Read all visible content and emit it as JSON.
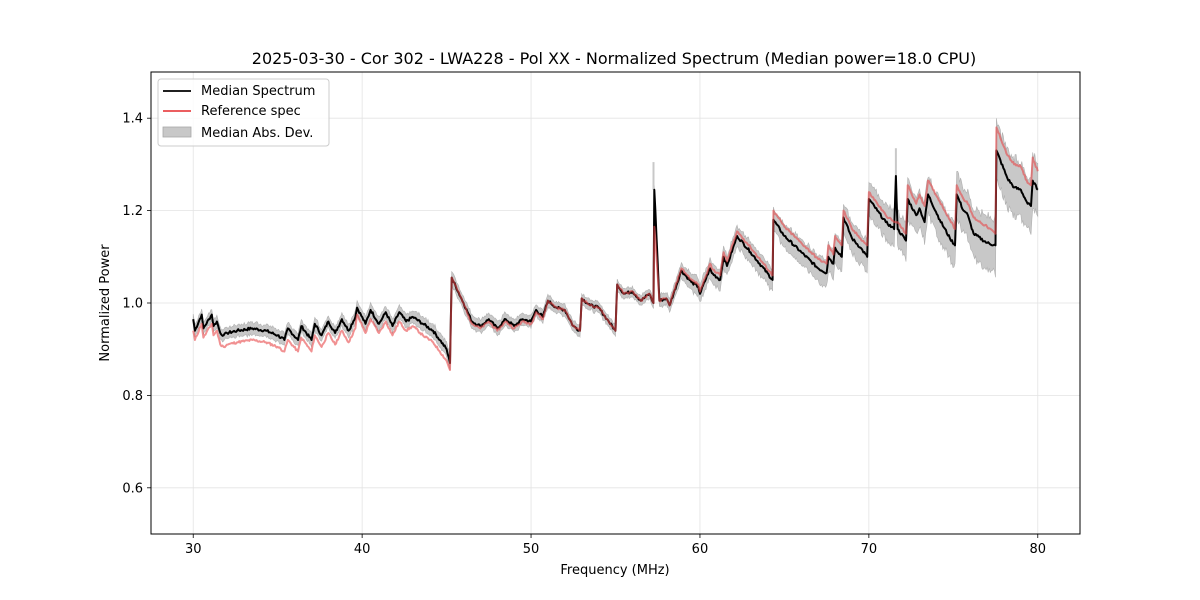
{
  "chart_data": {
    "type": "line",
    "title": "2025-03-30 - Cor 302 - LWA228 - Pol XX - Normalized Spectrum (Median power=18.0 CPU)",
    "xlabel": "Frequency (MHz)",
    "ylabel": "Normalized Power",
    "xlim": [
      27.5,
      82.5
    ],
    "ylim": [
      0.5,
      1.5
    ],
    "xticks": [
      30,
      40,
      50,
      60,
      70,
      80
    ],
    "xtick_labels": [
      "30",
      "40",
      "50",
      "60",
      "70",
      "80"
    ],
    "yticks": [
      0.6,
      0.8,
      1.0,
      1.2,
      1.4
    ],
    "ytick_labels": [
      "0.6",
      "0.8",
      "1.0",
      "1.2",
      "1.4"
    ],
    "grid": true,
    "legend": {
      "placement": "top-left",
      "entries": [
        {
          "label": "Median Spectrum",
          "type": "line",
          "color": "#000000"
        },
        {
          "label": "Reference spec",
          "type": "line",
          "color": "#e8474a"
        },
        {
          "label": "Median Abs. Dev.",
          "type": "patch",
          "color": "#c8c8c8"
        }
      ]
    },
    "series": [
      {
        "name": "Median Spectrum",
        "color": "#000000",
        "x": [
          30.0,
          30.1,
          30.5,
          30.6,
          31.1,
          31.2,
          31.4,
          31.6,
          31.8,
          32.0,
          32.6,
          33.5,
          34.3,
          35.0,
          35.4,
          35.6,
          36.2,
          36.4,
          37.0,
          37.2,
          37.6,
          38.0,
          38.4,
          38.8,
          39.2,
          39.6,
          39.7,
          40.2,
          40.5,
          41.0,
          41.4,
          41.8,
          42.2,
          42.6,
          43.0,
          43.6,
          44.2,
          44.6,
          45.0,
          45.2,
          45.3,
          46.0,
          46.5,
          47.0,
          47.5,
          48.0,
          48.5,
          49.0,
          49.5,
          50.0,
          50.3,
          50.7,
          51.0,
          51.5,
          52.0,
          52.5,
          52.9,
          53.0,
          53.5,
          54.0,
          54.5,
          55.0,
          55.1,
          55.5,
          56.0,
          56.5,
          57.0,
          57.25,
          57.3,
          57.6,
          58.0,
          58.2,
          58.9,
          59.5,
          59.9,
          60.0,
          60.6,
          60.7,
          61.2,
          61.4,
          61.6,
          62.2,
          63.0,
          64.3,
          64.35,
          65.0,
          66.0,
          67.0,
          67.5,
          67.6,
          67.9,
          68.0,
          68.4,
          68.5,
          69.0,
          69.5,
          69.9,
          70.0,
          70.5,
          71.0,
          71.5,
          71.6,
          71.7,
          72.2,
          72.3,
          72.8,
          73.0,
          73.3,
          73.5,
          74.2,
          74.8,
          75.1,
          75.2,
          75.6,
          75.8,
          76.2,
          77.0,
          77.5,
          77.55,
          78.2,
          78.6,
          79.0,
          79.4,
          79.6,
          79.7,
          80.0
        ],
        "y": [
          0.965,
          0.94,
          0.975,
          0.945,
          0.975,
          0.95,
          0.96,
          0.935,
          0.93,
          0.935,
          0.94,
          0.945,
          0.94,
          0.93,
          0.92,
          0.945,
          0.92,
          0.95,
          0.92,
          0.955,
          0.93,
          0.96,
          0.935,
          0.965,
          0.94,
          0.97,
          0.99,
          0.955,
          0.985,
          0.955,
          0.98,
          0.95,
          0.98,
          0.96,
          0.97,
          0.955,
          0.94,
          0.92,
          0.9,
          0.87,
          1.055,
          1.0,
          0.96,
          0.95,
          0.965,
          0.945,
          0.965,
          0.95,
          0.965,
          0.96,
          0.985,
          0.97,
          1.005,
          0.99,
          0.985,
          0.95,
          0.94,
          1.01,
          0.995,
          0.99,
          0.965,
          0.94,
          1.04,
          1.02,
          1.025,
          1.005,
          1.02,
          1.0,
          1.245,
          1.005,
          1.01,
          0.995,
          1.07,
          1.045,
          1.035,
          1.02,
          1.075,
          1.065,
          1.05,
          1.1,
          1.08,
          1.145,
          1.11,
          1.05,
          1.18,
          1.145,
          1.11,
          1.075,
          1.065,
          1.1,
          1.085,
          1.12,
          1.1,
          1.185,
          1.14,
          1.12,
          1.1,
          1.225,
          1.2,
          1.175,
          1.16,
          1.275,
          1.16,
          1.135,
          1.225,
          1.19,
          1.205,
          1.175,
          1.235,
          1.18,
          1.14,
          1.125,
          1.235,
          1.2,
          1.195,
          1.15,
          1.13,
          1.125,
          1.33,
          1.27,
          1.25,
          1.245,
          1.215,
          1.21,
          1.265,
          1.245
        ]
      },
      {
        "name": "Reference spec",
        "color": "#e8474a",
        "x": [
          30.0,
          30.1,
          30.5,
          30.6,
          31.1,
          31.2,
          31.4,
          31.6,
          31.8,
          32.0,
          32.6,
          33.5,
          34.3,
          35.0,
          35.4,
          35.6,
          36.2,
          36.4,
          37.0,
          37.2,
          37.6,
          38.0,
          38.4,
          38.8,
          39.2,
          39.6,
          39.7,
          40.2,
          40.5,
          41.0,
          41.4,
          41.8,
          42.2,
          42.6,
          43.0,
          43.6,
          44.2,
          44.6,
          45.0,
          45.2,
          45.3,
          46.0,
          46.5,
          47.0,
          47.5,
          48.0,
          48.5,
          49.0,
          49.5,
          50.0,
          50.3,
          50.7,
          51.0,
          51.5,
          52.0,
          52.5,
          52.9,
          53.0,
          53.5,
          54.0,
          54.5,
          55.0,
          55.1,
          55.5,
          56.0,
          56.5,
          57.0,
          57.25,
          57.3,
          57.6,
          58.0,
          58.2,
          58.9,
          59.5,
          59.9,
          60.0,
          60.6,
          60.7,
          61.2,
          61.4,
          61.6,
          62.2,
          63.0,
          64.3,
          64.35,
          65.0,
          66.0,
          67.0,
          67.5,
          67.6,
          67.9,
          68.0,
          68.4,
          68.5,
          69.0,
          69.5,
          69.9,
          70.0,
          70.5,
          71.0,
          71.5,
          71.6,
          71.7,
          72.2,
          72.3,
          72.8,
          73.0,
          73.3,
          73.5,
          74.2,
          74.8,
          75.1,
          75.2,
          75.6,
          75.8,
          76.2,
          77.0,
          77.5,
          77.55,
          78.2,
          78.6,
          79.0,
          79.4,
          79.6,
          79.7,
          80.0
        ],
        "y": [
          0.94,
          0.92,
          0.955,
          0.925,
          0.955,
          0.93,
          0.94,
          0.91,
          0.905,
          0.91,
          0.915,
          0.92,
          0.915,
          0.905,
          0.895,
          0.92,
          0.895,
          0.925,
          0.895,
          0.93,
          0.905,
          0.935,
          0.91,
          0.94,
          0.915,
          0.945,
          0.975,
          0.935,
          0.965,
          0.935,
          0.96,
          0.93,
          0.96,
          0.94,
          0.95,
          0.93,
          0.915,
          0.895,
          0.875,
          0.855,
          1.055,
          1.0,
          0.955,
          0.945,
          0.96,
          0.94,
          0.96,
          0.945,
          0.96,
          0.955,
          0.98,
          0.965,
          1.005,
          0.99,
          0.985,
          0.95,
          0.94,
          1.01,
          0.995,
          0.99,
          0.965,
          0.94,
          1.04,
          1.02,
          1.025,
          1.005,
          1.02,
          1.0,
          1.165,
          1.005,
          1.01,
          0.995,
          1.075,
          1.05,
          1.04,
          1.025,
          1.085,
          1.075,
          1.06,
          1.11,
          1.09,
          1.155,
          1.12,
          1.06,
          1.2,
          1.165,
          1.13,
          1.095,
          1.085,
          1.125,
          1.105,
          1.145,
          1.125,
          1.2,
          1.16,
          1.14,
          1.125,
          1.24,
          1.215,
          1.19,
          1.175,
          1.175,
          1.175,
          1.15,
          1.255,
          1.215,
          1.235,
          1.21,
          1.265,
          1.22,
          1.18,
          1.16,
          1.255,
          1.225,
          1.22,
          1.185,
          1.165,
          1.15,
          1.38,
          1.32,
          1.3,
          1.295,
          1.26,
          1.255,
          1.315,
          1.285
        ]
      }
    ],
    "band": {
      "name": "Median Abs. Dev.",
      "color": "#c8c8c8",
      "around": "Median Spectrum",
      "half_width_at": {
        "x": [
          30,
          45,
          57,
          60,
          65,
          70,
          75,
          77.5,
          80
        ],
        "y": [
          0.012,
          0.015,
          0.01,
          0.02,
          0.025,
          0.035,
          0.045,
          0.06,
          0.06
        ]
      }
    },
    "spikes": [
      {
        "x": 57.25,
        "median_top": 1.245,
        "band_top": 1.305,
        "reference_top": 1.165
      },
      {
        "x": 71.6,
        "median_top": 1.275,
        "band_top": 1.335,
        "reference_top": 1.175
      }
    ]
  }
}
